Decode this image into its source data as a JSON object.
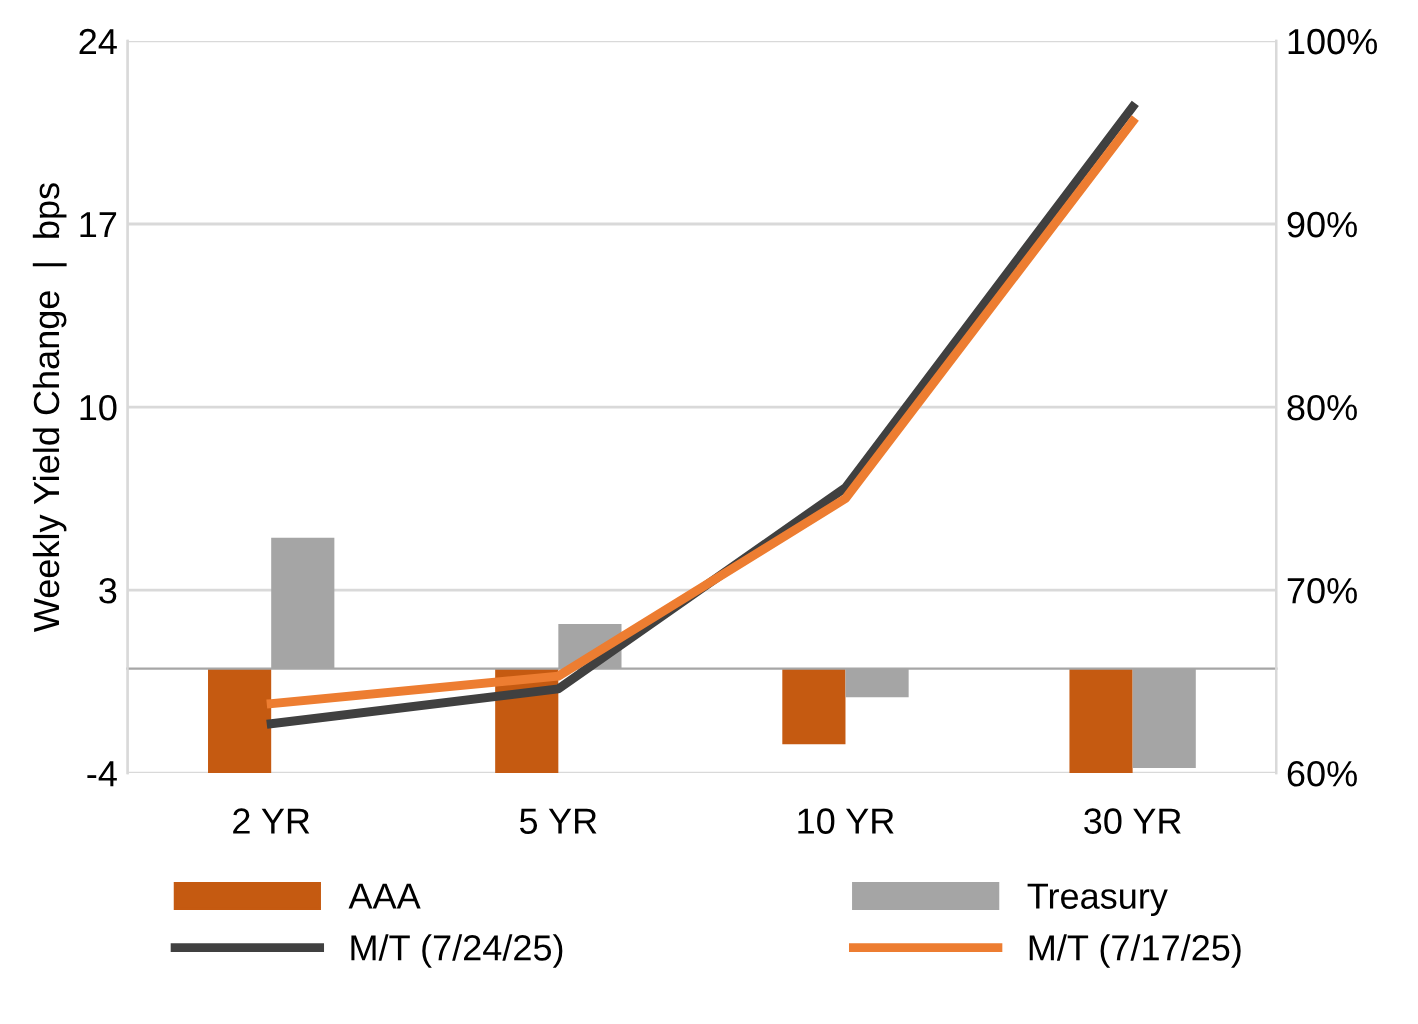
{
  "chart_data": {
    "type": "bar",
    "ylabel": "Weekly Yield Change  |  bps",
    "categories": [
      "2 YR",
      "5 YR",
      "10 YR",
      "30 YR"
    ],
    "series": [
      {
        "name": "AAA",
        "color": "#c55a11",
        "values": [
          -4,
          -4,
          -2.9,
          -4
        ]
      },
      {
        "name": "Treasury",
        "color": "#a5a5a5",
        "values": [
          5.0,
          1.7,
          -1.1,
          -3.8
        ]
      },
      {
        "name": "M/T (7/24/25)",
        "type": "line",
        "axis": "y2",
        "color": "#404040",
        "values": [
          62.7,
          64.6,
          75.6,
          96.4
        ]
      },
      {
        "name": "M/T (7/17/25)",
        "type": "line",
        "axis": "y2",
        "color": "#ed7d31",
        "values": [
          63.8,
          65.3,
          75.0,
          95.6
        ]
      }
    ],
    "ylim": [
      -4,
      24
    ],
    "yticks": [
      -4,
      3,
      10,
      17,
      24
    ],
    "y2lim": [
      60,
      100
    ],
    "y2ticks": [
      {
        "value": 60,
        "label": "60%"
      },
      {
        "value": 70,
        "label": "70%"
      },
      {
        "value": 80,
        "label": "80%"
      },
      {
        "value": 90,
        "label": "90%"
      },
      {
        "value": 100,
        "label": "100%"
      }
    ],
    "grid": "y",
    "legend": "bottom",
    "marker": "none",
    "line_style": "solid"
  }
}
